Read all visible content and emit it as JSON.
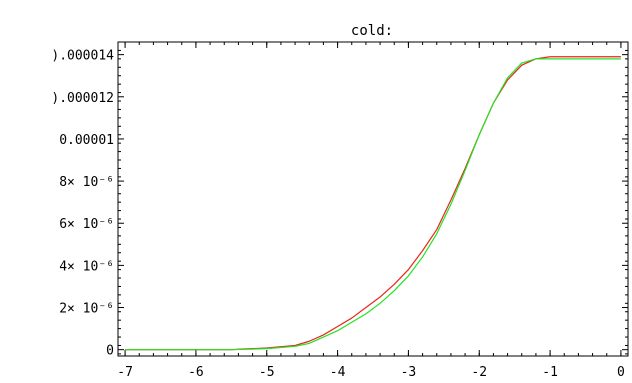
{
  "chart_data": {
    "type": "line",
    "title": "cold:",
    "xlabel": "",
    "ylabel": "",
    "xlim": [
      -7.1,
      0.1
    ],
    "ylim": [
      -3e-07,
      1.46e-05
    ],
    "grid": false,
    "frame": "box",
    "colors": {
      "background": "#ffffff",
      "axis": "#000000"
    },
    "x_ticks": [
      {
        "value": -7,
        "label": "-7"
      },
      {
        "value": -6,
        "label": "-6"
      },
      {
        "value": -5,
        "label": "-5"
      },
      {
        "value": -4,
        "label": "-4"
      },
      {
        "value": -3,
        "label": "-3"
      },
      {
        "value": -2,
        "label": "-2"
      },
      {
        "value": -1,
        "label": "-1"
      },
      {
        "value": 0,
        "label": "0"
      }
    ],
    "y_ticks": [
      {
        "value": 0,
        "label": "0"
      },
      {
        "value": 2e-06,
        "label": "2× 10⁻⁶"
      },
      {
        "value": 4e-06,
        "label": "4× 10⁻⁶"
      },
      {
        "value": 6e-06,
        "label": "6× 10⁻⁶"
      },
      {
        "value": 8e-06,
        "label": "8× 10⁻⁶"
      },
      {
        "value": 1e-05,
        "label": "0.00001"
      },
      {
        "value": 1.2e-05,
        "label": ").000012"
      },
      {
        "value": 1.4e-05,
        "label": ").000014"
      }
    ],
    "series": [
      {
        "color": "#e8261d",
        "x": [
          -7.0,
          -6.5,
          -6.0,
          -5.5,
          -5.4,
          -5.0,
          -4.6,
          -4.4,
          -4.2,
          -4.0,
          -3.8,
          -3.6,
          -3.4,
          -3.2,
          -3.0,
          -2.8,
          -2.6,
          -2.4,
          -2.2,
          -2.0,
          -1.8,
          -1.6,
          -1.4,
          -1.2,
          -1.0,
          -0.9,
          -0.8,
          -0.6,
          -0.4,
          -0.2,
          0.0
        ],
        "y": [
          0.0,
          0.0,
          0.0,
          0.0,
          2e-08,
          8e-08,
          2e-07,
          4e-07,
          7e-07,
          1.1e-06,
          1.5e-06,
          2e-06,
          2.5e-06,
          3.1e-06,
          3.8e-06,
          4.7e-06,
          5.7e-06,
          7.1e-06,
          8.6e-06,
          1.02e-05,
          1.17e-05,
          1.28e-05,
          1.35e-05,
          1.38e-05,
          1.39e-05,
          1.39e-05,
          1.39e-05,
          1.39e-05,
          1.39e-05,
          1.39e-05,
          1.39e-05
        ]
      },
      {
        "color": "#22e322",
        "x": [
          -7.0,
          -6.5,
          -6.0,
          -5.5,
          -5.0,
          -4.6,
          -4.4,
          -4.2,
          -4.0,
          -3.8,
          -3.6,
          -3.4,
          -3.2,
          -3.0,
          -2.8,
          -2.6,
          -2.4,
          -2.2,
          -2.0,
          -1.8,
          -1.6,
          -1.4,
          -1.2,
          -1.0,
          -0.8,
          -0.6,
          -0.4,
          -0.2,
          0.0
        ],
        "y": [
          0.0,
          0.0,
          0.0,
          0.0,
          5e-08,
          1.6e-07,
          3e-07,
          6e-07,
          9e-07,
          1.3e-06,
          1.7e-06,
          2.2e-06,
          2.8e-06,
          3.5e-06,
          4.4e-06,
          5.5e-06,
          6.9e-06,
          8.5e-06,
          1.02e-05,
          1.17e-05,
          1.29e-05,
          1.36e-05,
          1.38e-05,
          1.38e-05,
          1.38e-05,
          1.38e-05,
          1.38e-05,
          1.38e-05,
          1.38e-05
        ]
      }
    ]
  }
}
